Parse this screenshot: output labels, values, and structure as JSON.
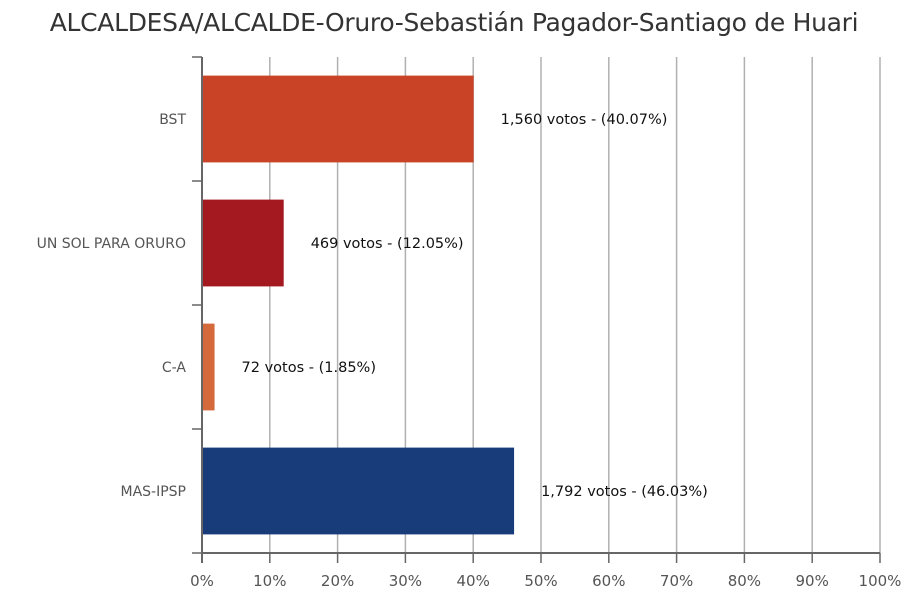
{
  "chart_data": {
    "type": "bar",
    "orientation": "horizontal",
    "title": "ALCALDESA/ALCALDE-Oruro-Sebastián Pagador-Santiago de Huari",
    "categories": [
      "BST",
      "UN SOL PARA ORURO",
      "C-A",
      "MAS-IPSP"
    ],
    "values": [
      40.07,
      12.05,
      1.85,
      46.03
    ],
    "votes": [
      1560,
      469,
      72,
      1792
    ],
    "data_labels": [
      "1,560 votos - (40.07%)",
      "469 votos - (12.05%)",
      "72 votos - (1.85%)",
      "1,792 votos - (46.03%)"
    ],
    "colors": [
      "#C94426",
      "#A3191F",
      "#D4693B",
      "#173C79"
    ],
    "xlim": [
      0,
      100
    ],
    "x_ticks": [
      "0%",
      "10%",
      "20%",
      "30%",
      "40%",
      "50%",
      "60%",
      "70%",
      "80%",
      "90%",
      "100%"
    ],
    "grid": "vertical",
    "xlabel": "",
    "ylabel": ""
  }
}
